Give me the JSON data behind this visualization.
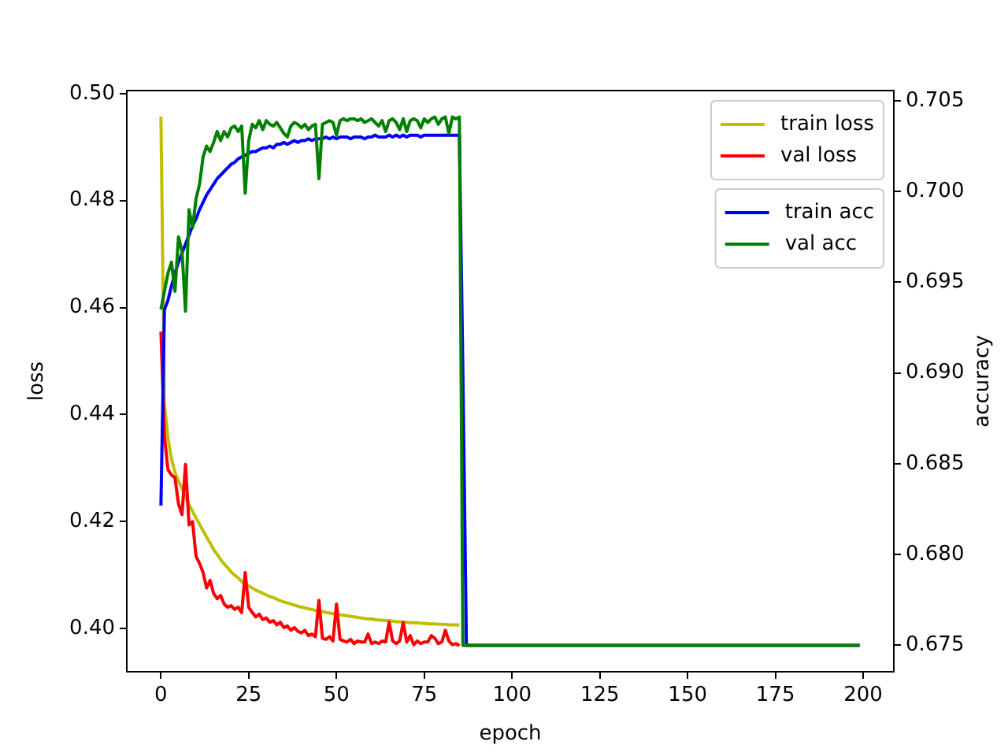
{
  "chart_data": {
    "type": "line",
    "xlabel": "epoch",
    "ylabel": "loss",
    "y2label": "accuracy",
    "x": [
      0,
      1,
      2,
      3,
      4,
      5,
      6,
      7,
      8,
      9,
      10,
      11,
      12,
      13,
      14,
      15,
      16,
      17,
      18,
      19,
      20,
      21,
      22,
      23,
      24,
      25,
      26,
      27,
      28,
      29,
      30,
      31,
      32,
      33,
      34,
      35,
      36,
      37,
      38,
      39,
      40,
      41,
      42,
      43,
      44,
      45,
      46,
      47,
      48,
      49,
      50,
      51,
      52,
      53,
      54,
      55,
      56,
      57,
      58,
      59,
      60,
      61,
      62,
      63,
      64,
      65,
      66,
      67,
      68,
      69,
      70,
      71,
      72,
      73,
      74,
      75,
      76,
      77,
      78,
      79,
      80,
      81,
      82,
      83,
      84,
      85,
      86,
      87,
      199
    ],
    "xlim": [
      -9.95,
      208.95
    ],
    "xticks": [
      0,
      25,
      50,
      75,
      100,
      125,
      150,
      175,
      200
    ],
    "ylim": [
      0.3918,
      0.5007
    ],
    "yticks": [
      {
        "value": 0.4,
        "label": "0.40"
      },
      0.42,
      0.44,
      0.46,
      0.48,
      {
        "value": 0.5,
        "label": "0.50"
      }
    ],
    "y2lim": [
      0.6735,
      0.7056
    ],
    "y2ticks": [
      0.675,
      {
        "value": 0.68,
        "label": "0.680"
      },
      0.685,
      {
        "value": 0.69,
        "label": "0.690"
      },
      0.695,
      {
        "value": 0.7,
        "label": "0.700"
      },
      0.705
    ],
    "legend": "top right",
    "series": [
      {
        "name": "train loss",
        "color": "#bfbf00",
        "values": [
          0.4957,
          0.442,
          0.4356,
          0.4317,
          0.4292,
          0.4276,
          0.4262,
          0.4247,
          0.4232,
          0.4219,
          0.4207,
          0.4195,
          0.4183,
          0.4171,
          0.416,
          0.4148,
          0.4139,
          0.4129,
          0.4121,
          0.4114,
          0.4106,
          0.41,
          0.4095,
          0.4088,
          0.4084,
          0.408,
          0.4076,
          0.4072,
          0.4069,
          0.4066,
          0.4063,
          0.406,
          0.4058,
          0.4055,
          0.4052,
          0.405,
          0.4048,
          0.4046,
          0.4044,
          0.4042,
          0.404,
          0.4039,
          0.4037,
          0.4036,
          0.4034,
          0.4033,
          0.4032,
          0.403,
          0.4029,
          0.4028,
          0.4027,
          0.4026,
          0.4025,
          0.4024,
          0.4023,
          0.4022,
          0.4021,
          0.402,
          0.4019,
          0.4018,
          0.4018,
          0.4017,
          0.4016,
          0.4016,
          0.4015,
          0.4015,
          0.4014,
          0.4013,
          0.4013,
          0.4012,
          0.4012,
          0.4011,
          0.4011,
          0.4011,
          0.401,
          0.401,
          0.4009,
          0.4009,
          0.4009,
          0.4008,
          0.4008,
          0.4008,
          0.4007,
          0.4007,
          0.4007,
          0.4007,
          null,
          null,
          null
        ]
      },
      {
        "name": "val loss",
        "color": "#ff0000",
        "values": [
          0.4555,
          0.436,
          0.4297,
          0.4287,
          0.4282,
          0.4233,
          0.4213,
          0.4307,
          0.4194,
          0.42,
          0.4135,
          0.4122,
          0.4105,
          0.4076,
          0.409,
          0.4066,
          0.4056,
          0.4062,
          0.4046,
          0.404,
          0.4043,
          0.4036,
          0.404,
          0.403,
          0.4105,
          0.404,
          0.403,
          0.4022,
          0.4027,
          0.4017,
          0.402,
          0.4012,
          0.4015,
          0.4007,
          0.4012,
          0.4002,
          0.4005,
          0.3997,
          0.4002,
          0.3995,
          0.3992,
          0.3997,
          0.3987,
          0.399,
          0.3985,
          0.4053,
          0.3982,
          0.398,
          0.3985,
          0.3977,
          0.4046,
          0.398,
          0.3977,
          0.3975,
          0.398,
          0.3972,
          0.3977,
          0.3975,
          0.3975,
          0.399,
          0.3972,
          0.3975,
          0.3972,
          0.3977,
          0.3975,
          0.4012,
          0.3977,
          0.3972,
          0.3977,
          0.4012,
          0.3975,
          0.3987,
          0.397,
          0.3977,
          0.3972,
          0.3975,
          0.3975,
          0.3987,
          0.3982,
          0.3972,
          0.3975,
          0.3997,
          0.3977,
          0.397,
          0.3972,
          0.3968,
          null,
          null,
          null
        ]
      },
      {
        "name": "train acc",
        "color": "#0000ff",
        "axis": "y2",
        "values": [
          0.6827,
          0.6935,
          0.694,
          0.6948,
          0.6955,
          0.6961,
          0.6966,
          0.6971,
          0.6976,
          0.6981,
          0.6985,
          0.699,
          0.6994,
          0.6998,
          0.7001,
          0.7004,
          0.7007,
          0.7009,
          0.7011,
          0.7013,
          0.7015,
          0.7016,
          0.7018,
          0.7019,
          0.702,
          0.7021,
          0.7022,
          0.7022,
          0.7023,
          0.7024,
          0.7024,
          0.7025,
          0.7024,
          0.7026,
          0.7026,
          0.7027,
          0.7026,
          0.7027,
          0.7028,
          0.7027,
          0.7028,
          0.7028,
          0.7029,
          0.7028,
          0.7029,
          0.7029,
          0.7029,
          0.703,
          0.7029,
          0.703,
          0.7029,
          0.703,
          0.703,
          0.703,
          0.7029,
          0.703,
          0.703,
          0.703,
          0.7029,
          0.703,
          0.703,
          0.7031,
          0.703,
          0.703,
          0.703,
          0.7031,
          0.703,
          0.7031,
          0.703,
          0.7031,
          0.703,
          0.7031,
          0.7031,
          0.7031,
          0.703,
          0.7031,
          0.7031,
          0.7031,
          0.7031,
          0.7031,
          0.7031,
          0.7031,
          0.7031,
          0.7031,
          0.7031,
          0.7031,
          0.69,
          0.675,
          0.675
        ]
      },
      {
        "name": "val acc",
        "color": "#008000",
        "axis": "y2",
        "values": [
          0.6935,
          0.6945,
          0.6955,
          0.6961,
          0.6945,
          0.6975,
          0.6967,
          0.6934,
          0.699,
          0.698,
          0.6996,
          0.7004,
          0.7019,
          0.7025,
          0.7022,
          0.7027,
          0.7033,
          0.7028,
          0.7033,
          0.703,
          0.7035,
          0.7036,
          0.7033,
          0.7036,
          0.6999,
          0.7028,
          0.7037,
          0.7035,
          0.7039,
          0.7034,
          0.7039,
          0.7037,
          0.7036,
          0.7038,
          0.7035,
          0.7032,
          0.703,
          0.7036,
          0.7038,
          0.7037,
          0.7035,
          0.7037,
          0.7034,
          0.7036,
          0.7037,
          0.7007,
          0.7037,
          0.7038,
          0.7039,
          0.7038,
          0.7031,
          0.7039,
          0.704,
          0.7039,
          0.704,
          0.704,
          0.7039,
          0.704,
          0.7038,
          0.7039,
          0.704,
          0.7038,
          0.7036,
          0.7039,
          0.7033,
          0.7039,
          0.704,
          0.7038,
          0.7034,
          0.704,
          0.7033,
          0.7039,
          0.704,
          0.7039,
          0.7035,
          0.704,
          0.7038,
          0.704,
          0.7041,
          0.7037,
          0.704,
          0.7041,
          0.7032,
          0.7041,
          0.704,
          0.7041,
          0.675,
          0.675,
          0.675
        ]
      }
    ]
  }
}
